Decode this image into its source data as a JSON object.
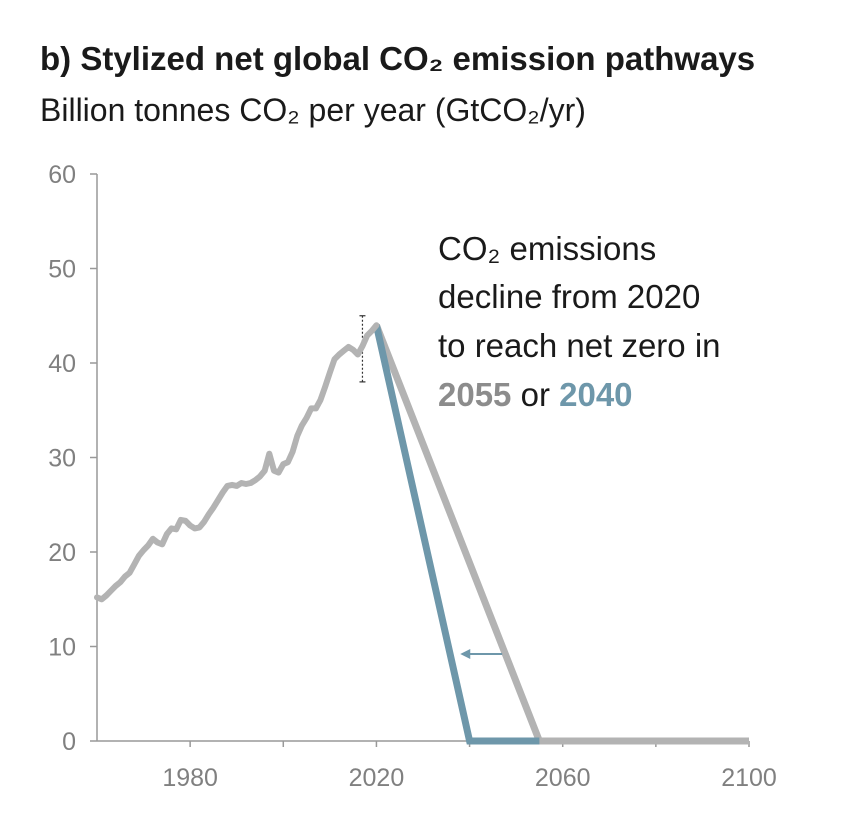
{
  "header": {
    "title": "b) Stylized net global CO₂ emission pathways",
    "subtitle": "Billion tonnes CO₂ per year (GtCO₂/yr)"
  },
  "annotation": {
    "line1": "CO₂ emissions",
    "line2": "decline from 2020",
    "line3": "to reach net zero in",
    "year_grey": "2055",
    "connector": " or ",
    "year_blue": "2040"
  },
  "colors": {
    "grey_path": "#b3b3b3",
    "blue_path": "#6e97aa",
    "axis": "#999999"
  },
  "chart_data": {
    "type": "line",
    "title": "b) Stylized net global CO₂ emission pathways",
    "ylabel": "Billion tonnes CO₂ per year (GtCO₂/yr)",
    "xlim": [
      1960,
      2100
    ],
    "ylim": [
      0,
      60
    ],
    "x_ticks": [
      1980,
      2020,
      2060,
      2100
    ],
    "y_ticks": [
      0,
      10,
      20,
      30,
      40,
      50,
      60
    ],
    "historical_uncertainty": {
      "x": 2017,
      "low": 38,
      "high": 45
    },
    "series": [
      {
        "x": [
          1960,
          1961,
          1962,
          1963,
          1964,
          1965,
          1966,
          1967,
          1968,
          1969,
          1970,
          1971,
          1972,
          1973,
          1974,
          1975,
          1976,
          1977,
          1978,
          1979,
          1980,
          1981,
          1982,
          1983,
          1984,
          1985,
          1986,
          1987,
          1988,
          1989,
          1990,
          1991,
          1992,
          1993,
          1994,
          1995,
          1996,
          1997,
          1998,
          1999,
          2000,
          2001,
          2002,
          2003,
          2004,
          2005,
          2006,
          2007,
          2008,
          2009,
          2010,
          2011,
          2012,
          2013,
          2014,
          2015,
          2016,
          2017,
          2018,
          2019,
          2020
        ],
        "values": [
          15.2,
          15.0,
          15.4,
          15.9,
          16.4,
          16.8,
          17.4,
          17.8,
          18.7,
          19.6,
          20.2,
          20.7,
          21.4,
          21.0,
          20.8,
          21.9,
          22.5,
          22.4,
          23.4,
          23.3,
          22.8,
          22.5,
          22.6,
          23.2,
          24.0,
          24.7,
          25.5,
          26.3,
          27.0,
          27.1,
          27.0,
          27.3,
          27.2,
          27.3,
          27.6,
          28.0,
          28.6,
          30.4,
          28.6,
          28.4,
          29.3,
          29.5,
          30.6,
          32.3,
          33.4,
          34.2,
          35.2,
          35.2,
          36.1,
          37.5,
          39.0,
          40.4,
          40.9,
          41.3,
          41.7,
          41.4,
          40.9,
          41.8,
          42.9,
          43.4,
          44.0
        ]
      },
      {
        "x": [
          2020,
          2055,
          2100
        ],
        "values": [
          44.0,
          0,
          0
        ]
      },
      {
        "x": [
          2020,
          2040,
          2055
        ],
        "values": [
          44.0,
          0,
          0
        ]
      }
    ],
    "arrow": {
      "from_x": 2047,
      "to_x": 2038,
      "y": 9.2
    }
  }
}
